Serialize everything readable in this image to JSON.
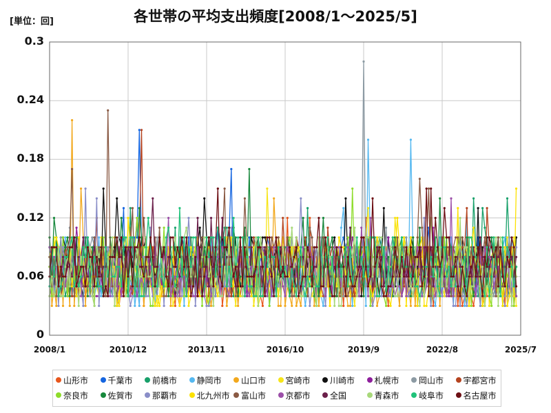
{
  "unit_label": "[単位：回]",
  "chart_data": {
    "type": "line",
    "title": "各世帯の平均支出頻度[2008/1～2025/5]",
    "xlabel": "",
    "ylabel": "",
    "ylim": [
      0,
      0.3
    ],
    "yticks": [
      "0",
      "0.06",
      "0.12",
      "0.18",
      "0.24",
      "0.3"
    ],
    "xlim": [
      "2008/1",
      "2025/7"
    ],
    "xticks": [
      "2008/1",
      "2010/12",
      "2013/11",
      "2016/10",
      "2019/9",
      "2022/8",
      "2025/7"
    ],
    "grid": true,
    "legend_position": "bottom",
    "period": {
      "start": "2008/1",
      "end": "2025/5"
    },
    "series": [
      {
        "name": "山形市",
        "color": "#e8561c",
        "mean": 0.06,
        "spread": 0.03,
        "values": []
      },
      {
        "name": "千葉市",
        "color": "#1565e0",
        "mean": 0.07,
        "spread": 0.035,
        "values": []
      },
      {
        "name": "前橋市",
        "color": "#18a06a",
        "mean": 0.065,
        "spread": 0.03,
        "values": []
      },
      {
        "name": "静岡市",
        "color": "#55b8f0",
        "mean": 0.065,
        "spread": 0.035,
        "values": []
      },
      {
        "name": "山口市",
        "color": "#f2a81d",
        "mean": 0.06,
        "spread": 0.035,
        "values": []
      },
      {
        "name": "宮崎市",
        "color": "#f7e51a",
        "mean": 0.065,
        "spread": 0.035,
        "values": []
      },
      {
        "name": "川崎市",
        "color": "#111111",
        "mean": 0.07,
        "spread": 0.03,
        "values": []
      },
      {
        "name": "札幌市",
        "color": "#8e1f9c",
        "mean": 0.065,
        "spread": 0.03,
        "values": []
      },
      {
        "name": "岡山市",
        "color": "#8c9aa3",
        "mean": 0.07,
        "spread": 0.035,
        "values": []
      },
      {
        "name": "宇都宮市",
        "color": "#b5431f",
        "mean": 0.065,
        "spread": 0.03,
        "values": []
      },
      {
        "name": "奈良市",
        "color": "#8edc2a",
        "mean": 0.065,
        "spread": 0.035,
        "values": []
      },
      {
        "name": "佐賀市",
        "color": "#17883c",
        "mean": 0.07,
        "spread": 0.035,
        "values": []
      },
      {
        "name": "那覇市",
        "color": "#8a8ec8",
        "mean": 0.06,
        "spread": 0.03,
        "values": []
      },
      {
        "name": "北九州市",
        "color": "#fce100",
        "mean": 0.065,
        "spread": 0.035,
        "values": []
      },
      {
        "name": "富山市",
        "color": "#8a5a44",
        "mean": 0.07,
        "spread": 0.035,
        "values": []
      },
      {
        "name": "京都市",
        "color": "#9b4fa8",
        "mean": 0.065,
        "spread": 0.03,
        "values": []
      },
      {
        "name": "全国",
        "color": "#6b1f4a",
        "mean": 0.07,
        "spread": 0.02,
        "values": []
      },
      {
        "name": "青森市",
        "color": "#a8d87a",
        "mean": 0.065,
        "spread": 0.035,
        "values": []
      },
      {
        "name": "岐阜市",
        "color": "#20c27a",
        "mean": 0.07,
        "spread": 0.035,
        "values": []
      },
      {
        "name": "名古屋市",
        "color": "#6d0f14",
        "mean": 0.07,
        "spread": 0.03,
        "values": []
      }
    ],
    "peaks": [
      {
        "series": "岡山市",
        "x": "2019/9",
        "y": 0.28
      },
      {
        "series": "富山市",
        "x": "2010/3",
        "y": 0.23
      },
      {
        "series": "山口市",
        "x": "2008/11",
        "y": 0.22
      },
      {
        "series": "千葉市",
        "x": "2011/5",
        "y": 0.21
      },
      {
        "series": "宇都宮市",
        "x": "2011/6",
        "y": 0.21
      },
      {
        "series": "静岡市",
        "x": "2019/11",
        "y": 0.2
      },
      {
        "series": "静岡市",
        "x": "2021/6",
        "y": 0.2
      }
    ]
  }
}
